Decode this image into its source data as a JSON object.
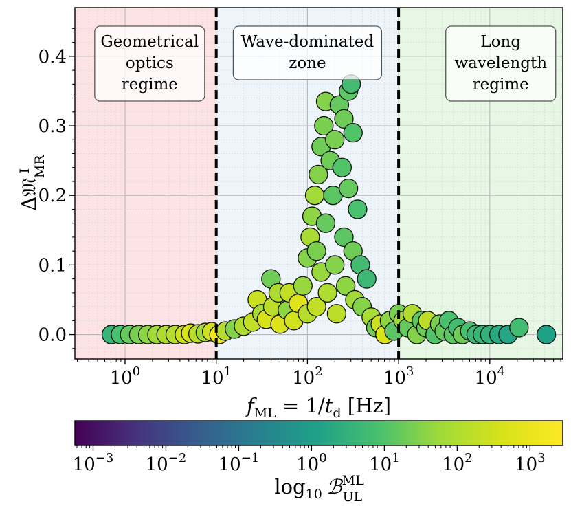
{
  "chart_data": {
    "type": "scatter",
    "xscale": "log",
    "xlim_log10": [
      -0.55,
      4.8
    ],
    "ylim": [
      -0.035,
      0.47
    ],
    "xlabel": "f_ML = 1/t_d [Hz]",
    "xlabel_parts": {
      "f": "f",
      "f_sub": "ML",
      "eq": " = 1/",
      "t": "t",
      "t_sub": "d",
      "unit": " [Hz]"
    },
    "ylabel_parts": {
      "delta": "Δ𝔐",
      "sup": "I",
      "sub": "MR"
    },
    "x_ticks": [
      {
        "base": "10",
        "exp": "0",
        "log10": 0
      },
      {
        "base": "10",
        "exp": "1",
        "log10": 1
      },
      {
        "base": "10",
        "exp": "2",
        "log10": 2
      },
      {
        "base": "10",
        "exp": "3",
        "log10": 3
      },
      {
        "base": "10",
        "exp": "4",
        "log10": 4
      }
    ],
    "y_ticks": [
      {
        "label": "0.0",
        "value": 0.0
      },
      {
        "label": "0.1",
        "value": 0.1
      },
      {
        "label": "0.2",
        "value": 0.2
      },
      {
        "label": "0.3",
        "value": 0.3
      },
      {
        "label": "0.4",
        "value": 0.4
      }
    ],
    "regions": [
      {
        "name": "geometrical-optics",
        "x_log10": [
          -0.55,
          1
        ],
        "fill": "#fde3e4",
        "label_lines": [
          "Geometrical",
          "optics",
          "regime"
        ],
        "label_center_log10": 0.27
      },
      {
        "name": "wave-dominated",
        "x_log10": [
          1,
          3
        ],
        "fill": "#edf5fb",
        "label_lines": [
          "Wave-dominated",
          "zone"
        ],
        "label_center_log10": 2.0
      },
      {
        "name": "long-wavelength",
        "x_log10": [
          3,
          4.8
        ],
        "fill": "#e6f8e4",
        "label_lines": [
          "Long",
          "wavelength",
          "regime"
        ],
        "label_center_log10": 4.12
      }
    ],
    "boundaries_log10": [
      1,
      3
    ],
    "colorbar": {
      "label_parts": {
        "log": "log",
        "sub10": "10",
        "B": "ℬ",
        "sup": "ML",
        "sub": "UL"
      },
      "range_log10": [
        -3.25,
        3.45
      ],
      "ticks": [
        {
          "base": "10",
          "exp": "−3",
          "log10": -3
        },
        {
          "base": "10",
          "exp": "−2",
          "log10": -2
        },
        {
          "base": "10",
          "exp": "−1",
          "log10": -1
        },
        {
          "base": "10",
          "exp": "0",
          "log10": 0
        },
        {
          "base": "10",
          "exp": "1",
          "log10": 1
        },
        {
          "base": "10",
          "exp": "2",
          "log10": 2
        },
        {
          "base": "10",
          "exp": "3",
          "log10": 3
        }
      ],
      "colormap": "viridis"
    },
    "points": [
      {
        "x": -0.15,
        "y": 0.0,
        "c": 0.6
      },
      {
        "x": -0.05,
        "y": 0.0,
        "c": 0.9
      },
      {
        "x": 0.05,
        "y": 0.0,
        "c": 1.2
      },
      {
        "x": 0.15,
        "y": 0.0,
        "c": 1.4
      },
      {
        "x": 0.25,
        "y": 0.0,
        "c": 1.6
      },
      {
        "x": 0.35,
        "y": 0.0,
        "c": 1.8
      },
      {
        "x": 0.45,
        "y": 0.0,
        "c": 2.0
      },
      {
        "x": 0.55,
        "y": 0.0,
        "c": 2.1
      },
      {
        "x": 0.65,
        "y": 0.0,
        "c": 2.4
      },
      {
        "x": 0.72,
        "y": 0.002,
        "c": 2.6
      },
      {
        "x": 0.8,
        "y": 0.001,
        "c": 2.2
      },
      {
        "x": 0.88,
        "y": 0.003,
        "c": 1.8
      },
      {
        "x": 0.95,
        "y": 0.004,
        "c": 2.5
      },
      {
        "x": 1.03,
        "y": 0.0,
        "c": 3.2
      },
      {
        "x": 1.1,
        "y": 0.005,
        "c": 2.1
      },
      {
        "x": 1.2,
        "y": 0.008,
        "c": 1.5
      },
      {
        "x": 1.3,
        "y": 0.012,
        "c": 2.0
      },
      {
        "x": 1.4,
        "y": 0.018,
        "c": 2.3
      },
      {
        "x": 1.45,
        "y": 0.05,
        "c": 2.4
      },
      {
        "x": 1.5,
        "y": 0.03,
        "c": 1.9
      },
      {
        "x": 1.55,
        "y": 0.022,
        "c": 2.6
      },
      {
        "x": 1.6,
        "y": 0.08,
        "c": 1.3
      },
      {
        "x": 1.62,
        "y": 0.04,
        "c": 2.2
      },
      {
        "x": 1.68,
        "y": 0.06,
        "c": 2.0
      },
      {
        "x": 1.7,
        "y": 0.015,
        "c": 2.7
      },
      {
        "x": 1.78,
        "y": 0.035,
        "c": 1.6
      },
      {
        "x": 1.8,
        "y": 0.06,
        "c": 2.3
      },
      {
        "x": 1.85,
        "y": 0.02,
        "c": 2.5
      },
      {
        "x": 1.9,
        "y": 0.045,
        "c": 2.8
      },
      {
        "x": 1.95,
        "y": 0.07,
        "c": 1.7
      },
      {
        "x": 2.0,
        "y": 0.11,
        "c": 1.5
      },
      {
        "x": 2.0,
        "y": 0.03,
        "c": 2.1
      },
      {
        "x": 2.03,
        "y": 0.14,
        "c": 1.9
      },
      {
        "x": 2.05,
        "y": 0.17,
        "c": 1.6
      },
      {
        "x": 2.08,
        "y": 0.2,
        "c": 1.8
      },
      {
        "x": 2.1,
        "y": 0.12,
        "c": 1.4
      },
      {
        "x": 2.1,
        "y": 0.04,
        "c": 2.3
      },
      {
        "x": 2.12,
        "y": 0.23,
        "c": 1.5
      },
      {
        "x": 2.15,
        "y": 0.27,
        "c": 1.3
      },
      {
        "x": 2.15,
        "y": 0.09,
        "c": 1.7
      },
      {
        "x": 2.18,
        "y": 0.3,
        "c": 1.4
      },
      {
        "x": 2.2,
        "y": 0.335,
        "c": 1.5
      },
      {
        "x": 2.2,
        "y": 0.16,
        "c": 1.2
      },
      {
        "x": 2.22,
        "y": 0.06,
        "c": 2.0
      },
      {
        "x": 2.25,
        "y": 0.25,
        "c": 1.3
      },
      {
        "x": 2.28,
        "y": 0.2,
        "c": 1.1
      },
      {
        "x": 2.3,
        "y": 0.28,
        "c": 1.4
      },
      {
        "x": 2.3,
        "y": 0.1,
        "c": 1.5
      },
      {
        "x": 2.32,
        "y": 0.03,
        "c": 2.2
      },
      {
        "x": 2.35,
        "y": 0.33,
        "c": 1.2
      },
      {
        "x": 2.38,
        "y": 0.24,
        "c": 1.0
      },
      {
        "x": 2.4,
        "y": 0.31,
        "c": 1.3
      },
      {
        "x": 2.4,
        "y": 0.14,
        "c": 1.1
      },
      {
        "x": 2.42,
        "y": 0.07,
        "c": 1.6
      },
      {
        "x": 2.45,
        "y": 0.35,
        "c": 1.1
      },
      {
        "x": 2.45,
        "y": 0.21,
        "c": 1.2
      },
      {
        "x": 2.48,
        "y": 0.36,
        "c": 0.8
      },
      {
        "x": 2.5,
        "y": 0.29,
        "c": 1.0
      },
      {
        "x": 2.5,
        "y": 0.12,
        "c": 1.3
      },
      {
        "x": 2.52,
        "y": 0.05,
        "c": 1.8
      },
      {
        "x": 2.55,
        "y": 0.18,
        "c": 0.9
      },
      {
        "x": 2.58,
        "y": 0.1,
        "c": 0.8
      },
      {
        "x": 2.6,
        "y": 0.04,
        "c": 1.5
      },
      {
        "x": 2.65,
        "y": 0.08,
        "c": 0.7
      },
      {
        "x": 2.7,
        "y": 0.025,
        "c": 1.9
      },
      {
        "x": 2.75,
        "y": 0.01,
        "c": 1.3
      },
      {
        "x": 2.8,
        "y": 0.015,
        "c": 2.4
      },
      {
        "x": 2.85,
        "y": 0.0,
        "c": 2.6
      },
      {
        "x": 2.9,
        "y": 0.02,
        "c": 1.6
      },
      {
        "x": 2.95,
        "y": 0.005,
        "c": 1.1
      },
      {
        "x": 3.0,
        "y": 0.03,
        "c": 1.4
      },
      {
        "x": 3.05,
        "y": 0.02,
        "c": 1.8
      },
      {
        "x": 3.1,
        "y": 0.01,
        "c": 1.2
      },
      {
        "x": 3.15,
        "y": 0.03,
        "c": 2.0
      },
      {
        "x": 3.2,
        "y": 0.0,
        "c": 1.5
      },
      {
        "x": 3.25,
        "y": 0.02,
        "c": 1.1
      },
      {
        "x": 3.3,
        "y": 0.01,
        "c": 1.3
      },
      {
        "x": 3.32,
        "y": 0.02,
        "c": 2.2
      },
      {
        "x": 3.4,
        "y": 0.0,
        "c": 1.0
      },
      {
        "x": 3.45,
        "y": 0.015,
        "c": 1.4
      },
      {
        "x": 3.5,
        "y": 0.005,
        "c": 1.2
      },
      {
        "x": 3.55,
        "y": 0.02,
        "c": 0.9
      },
      {
        "x": 3.6,
        "y": 0.0,
        "c": 1.1
      },
      {
        "x": 3.65,
        "y": 0.01,
        "c": 0.8
      },
      {
        "x": 3.7,
        "y": 0.0,
        "c": 1.3
      },
      {
        "x": 3.78,
        "y": 0.005,
        "c": 0.9
      },
      {
        "x": 3.85,
        "y": 0.0,
        "c": 0.7
      },
      {
        "x": 3.92,
        "y": 0.0,
        "c": 0.6
      },
      {
        "x": 4.0,
        "y": 0.0,
        "c": 0.5
      },
      {
        "x": 4.1,
        "y": 0.0,
        "c": 0.3
      },
      {
        "x": 4.2,
        "y": 0.0,
        "c": 0.2
      },
      {
        "x": 4.32,
        "y": 0.01,
        "c": 0.8
      },
      {
        "x": 4.62,
        "y": 0.0,
        "c": 0.1
      }
    ]
  }
}
